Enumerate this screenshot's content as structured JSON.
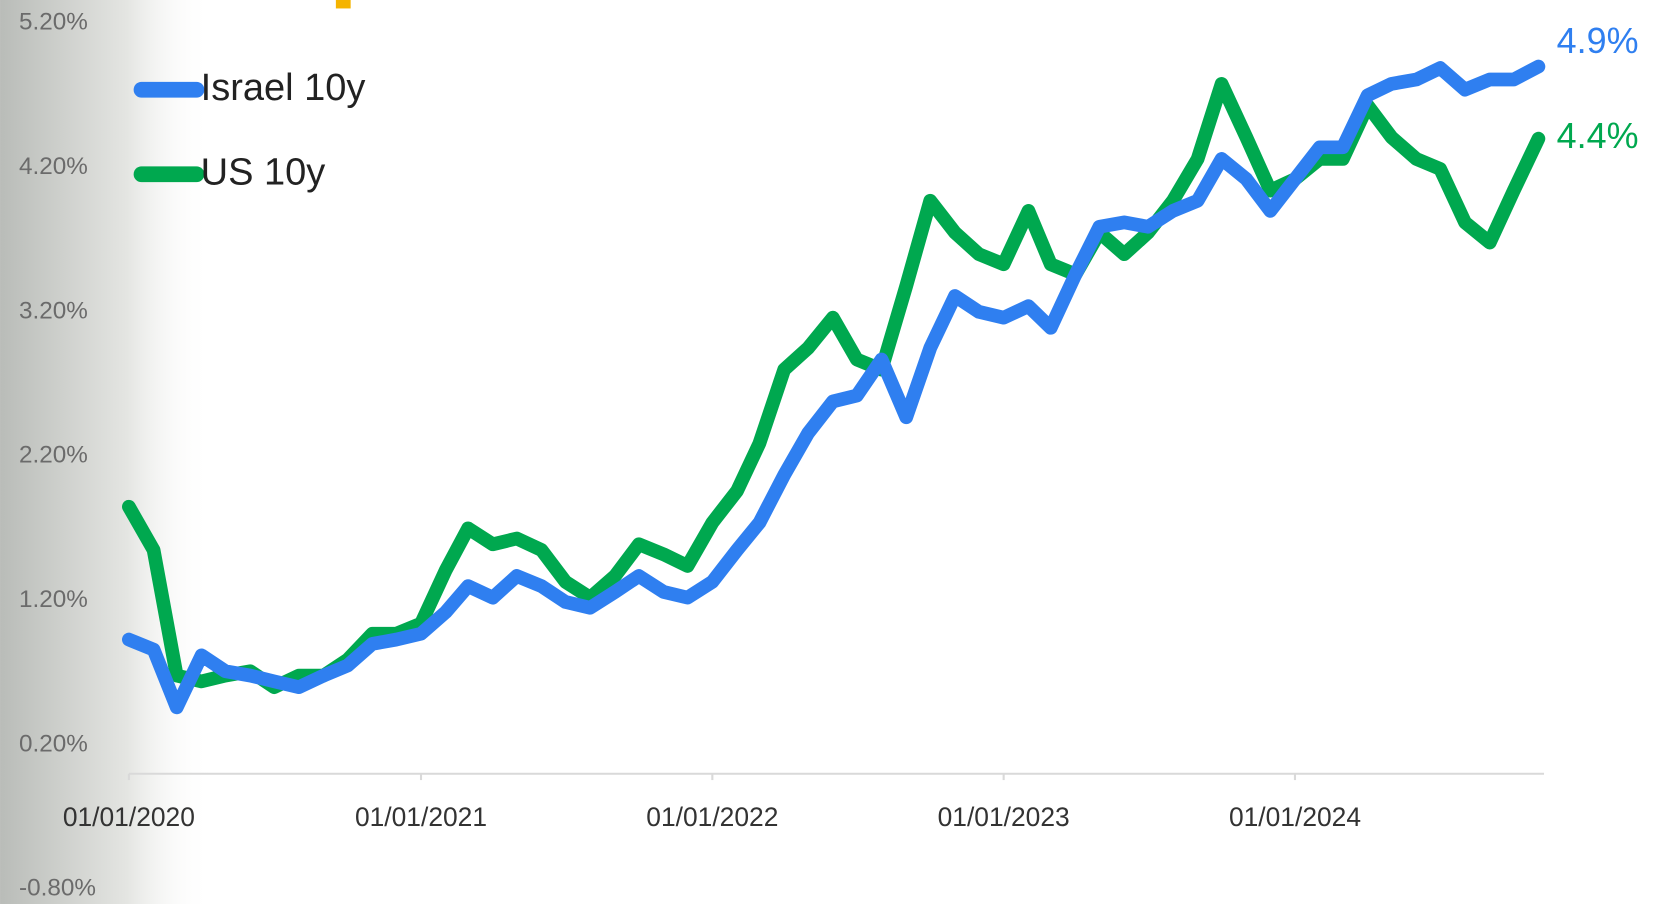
{
  "chart_data": {
    "type": "line",
    "x": [
      "2020-01-01",
      "2020-02-01",
      "2020-03-01",
      "2020-04-01",
      "2020-05-01",
      "2020-06-01",
      "2020-07-01",
      "2020-08-01",
      "2020-09-01",
      "2020-10-01",
      "2020-11-01",
      "2020-12-01",
      "2021-01-01",
      "2021-02-01",
      "2021-03-01",
      "2021-04-01",
      "2021-05-01",
      "2021-06-01",
      "2021-07-01",
      "2021-08-01",
      "2021-09-01",
      "2021-10-01",
      "2021-11-01",
      "2021-12-01",
      "2022-01-01",
      "2022-02-01",
      "2022-03-01",
      "2022-04-01",
      "2022-05-01",
      "2022-06-01",
      "2022-07-01",
      "2022-08-01",
      "2022-09-01",
      "2022-10-01",
      "2022-11-01",
      "2022-12-01",
      "2023-01-01",
      "2023-02-01",
      "2023-03-01",
      "2023-04-01",
      "2023-05-01",
      "2023-06-01",
      "2023-07-01",
      "2023-08-01",
      "2023-09-01",
      "2023-10-01",
      "2023-11-01",
      "2023-12-01",
      "2024-01-01",
      "2024-02-01",
      "2024-03-01",
      "2024-04-01",
      "2024-05-01",
      "2024-06-01",
      "2024-07-01",
      "2024-08-01",
      "2024-09-01",
      "2024-10-01",
      "2024-11-01"
    ],
    "series": [
      {
        "name": "Israel 10y",
        "color": "#2f7ff0",
        "last_label": "4.9%",
        "values": [
          0.93,
          0.86,
          0.46,
          0.82,
          0.71,
          0.68,
          0.64,
          0.6,
          0.68,
          0.75,
          0.9,
          0.93,
          0.97,
          1.12,
          1.3,
          1.22,
          1.37,
          1.3,
          1.19,
          1.15,
          1.26,
          1.37,
          1.26,
          1.22,
          1.33,
          1.55,
          1.74,
          2.07,
          2.36,
          2.58,
          2.62,
          2.87,
          2.47,
          2.95,
          3.31,
          3.2,
          3.16,
          3.24,
          3.09,
          3.46,
          3.79,
          3.82,
          3.79,
          3.9,
          3.97,
          4.26,
          4.12,
          3.9,
          4.12,
          4.34,
          4.34,
          4.7,
          4.78,
          4.81,
          4.89,
          4.74,
          4.81,
          4.81,
          4.9
        ]
      },
      {
        "name": "US 10y",
        "color": "#00a84f",
        "last_label": "4.4%",
        "values": [
          1.85,
          1.55,
          0.68,
          0.64,
          0.68,
          0.71,
          0.6,
          0.68,
          0.68,
          0.79,
          0.97,
          0.97,
          1.04,
          1.41,
          1.7,
          1.59,
          1.63,
          1.55,
          1.33,
          1.22,
          1.37,
          1.59,
          1.52,
          1.44,
          1.74,
          1.96,
          2.29,
          2.8,
          2.95,
          3.16,
          2.87,
          2.8,
          3.38,
          3.97,
          3.75,
          3.6,
          3.53,
          3.9,
          3.53,
          3.46,
          3.75,
          3.6,
          3.75,
          3.97,
          4.26,
          4.78,
          4.41,
          4.04,
          4.12,
          4.26,
          4.26,
          4.63,
          4.41,
          4.26,
          4.19,
          3.82,
          3.68,
          4.04,
          4.4
        ]
      }
    ],
    "xlim": [
      "2020-01-01",
      "2024-11-08"
    ],
    "xticks": [
      {
        "value": "2020-01-01",
        "label": "01/01/2020"
      },
      {
        "value": "2021-01-01",
        "label": "01/01/2021"
      },
      {
        "value": "2022-01-01",
        "label": "01/01/2022"
      },
      {
        "value": "2023-01-01",
        "label": "01/01/2023"
      },
      {
        "value": "2024-01-01",
        "label": "01/01/2024"
      }
    ],
    "ylim": [
      -0.8,
      5.2
    ],
    "yticks": [
      {
        "value": -0.8,
        "label": "-0.80%"
      },
      {
        "value": 0.2,
        "label": "0.20%"
      },
      {
        "value": 1.2,
        "label": "1.20%"
      },
      {
        "value": 2.2,
        "label": "2.20%"
      },
      {
        "value": 3.2,
        "label": "3.20%"
      },
      {
        "value": 4.2,
        "label": "4.20%"
      },
      {
        "value": 5.2,
        "label": "5.20%"
      }
    ],
    "legend": "top-left"
  }
}
